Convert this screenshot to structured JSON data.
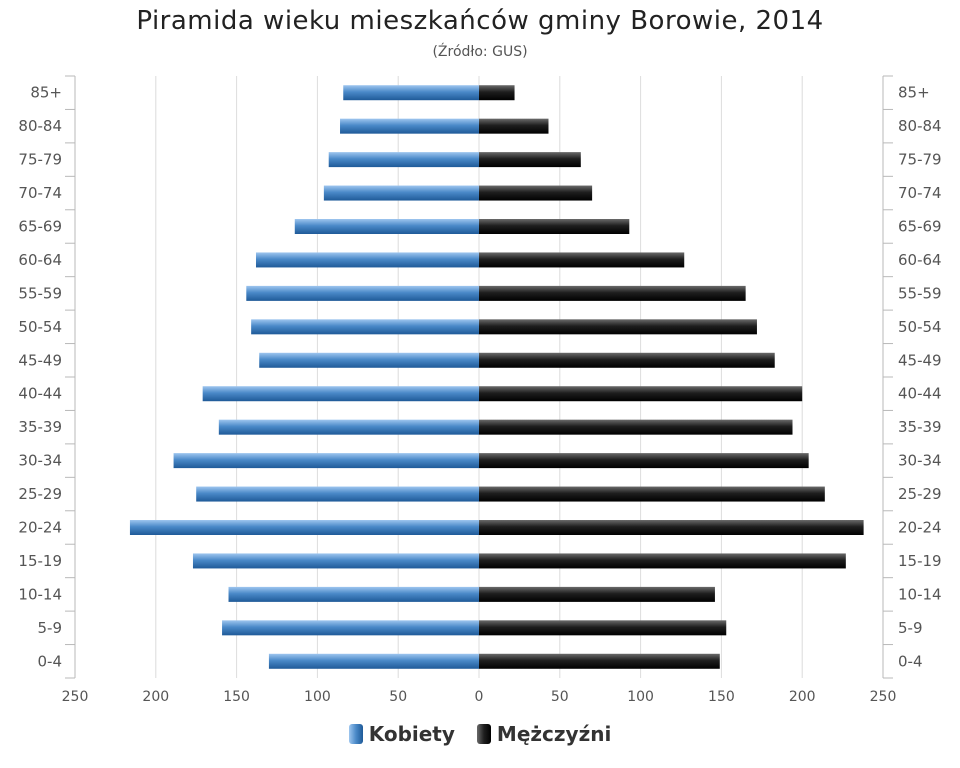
{
  "chart_data": {
    "type": "bar",
    "orientation": "horizontal",
    "title": "Piramida wieku mieszkańców gminy Borowie, 2014",
    "subtitle": "(Źródło: GUS)",
    "categories": [
      "85+",
      "80-84",
      "75-79",
      "70-74",
      "65-69",
      "60-64",
      "55-59",
      "50-54",
      "45-49",
      "40-44",
      "35-39",
      "30-34",
      "25-29",
      "20-24",
      "15-19",
      "10-14",
      "5-9",
      "0-4"
    ],
    "series": [
      {
        "name": "Kobiety",
        "color": "#4a89c8",
        "values": [
          84,
          86,
          93,
          96,
          114,
          138,
          144,
          141,
          136,
          171,
          161,
          189,
          175,
          216,
          177,
          155,
          159,
          130
        ]
      },
      {
        "name": "Mężczyźni",
        "color": "#1c1c1c",
        "values": [
          22,
          43,
          63,
          70,
          93,
          127,
          165,
          172,
          183,
          200,
          194,
          204,
          214,
          238,
          227,
          146,
          153,
          149
        ]
      }
    ],
    "x_ticks": [
      "250",
      "200",
      "150",
      "100",
      "50",
      "0",
      "50",
      "100",
      "150",
      "200",
      "250"
    ],
    "xlim": [
      -250,
      250
    ],
    "grid": true,
    "legend_position": "bottom"
  }
}
